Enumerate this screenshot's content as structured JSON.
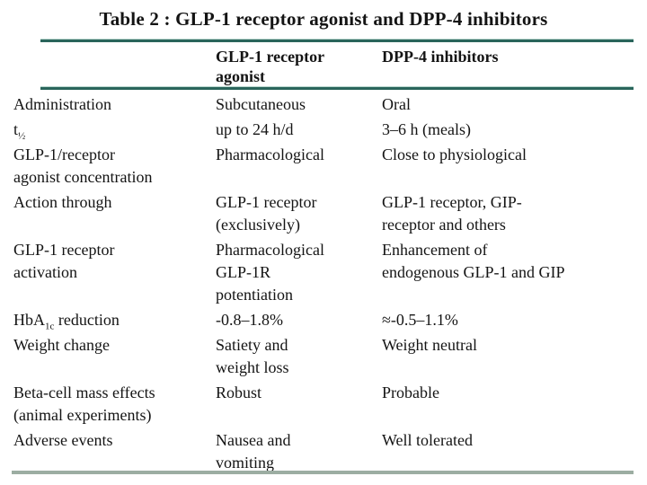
{
  "title": "Table 2 : GLP-1 receptor agonist and DPP-4 inhibitors",
  "colors": {
    "rule_teal": "#2a655b",
    "rule_bottom_gray_green": "#9cada2",
    "text": "#141414",
    "background": "#ffffff"
  },
  "table": {
    "headers": {
      "col1": "",
      "col2": "GLP-1 receptor\nagonist",
      "col3": "DPP-4 inhibitors"
    },
    "rows": [
      {
        "label": "Administration",
        "glp1": "Subcutaneous",
        "dpp4": "Oral"
      },
      {
        "label_pre": "t",
        "label_sub": "½",
        "label_post": "",
        "glp1": "up to 24 h/d",
        "dpp4": "3–6 h (meals)"
      },
      {
        "label": "GLP-1/receptor\nagonist concentration",
        "glp1": "Pharmacological",
        "dpp4": "Close to physiological"
      },
      {
        "label": "Action through",
        "glp1": "GLP-1 receptor\n(exclusively)",
        "dpp4": "GLP-1 receptor, GIP-\nreceptor and others"
      },
      {
        "label": "GLP-1 receptor\nactivation",
        "glp1": "Pharmacological\nGLP-1R\npotentiation",
        "dpp4": "Enhancement of\nendogenous GLP-1 and GIP"
      },
      {
        "label_pre": "HbA",
        "label_sub": "1c",
        "label_post": " reduction",
        "glp1": "-0.8–1.8%",
        "dpp4": "≈-0.5–1.1%"
      },
      {
        "label": "Weight change",
        "glp1": "Satiety and\nweight loss",
        "dpp4": "Weight neutral"
      },
      {
        "label": "Beta-cell mass effects\n(animal experiments)",
        "glp1": "Robust",
        "dpp4": "Probable"
      },
      {
        "label": "Adverse events",
        "glp1": "Nausea and\nvomiting",
        "dpp4": "Well tolerated"
      }
    ]
  }
}
